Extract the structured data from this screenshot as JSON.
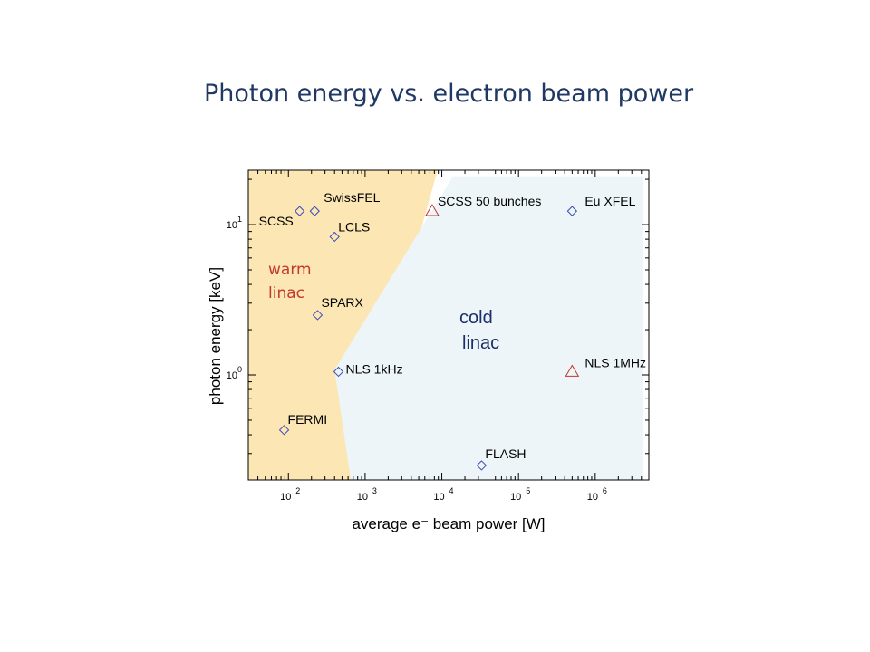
{
  "slide": {
    "title": "Photon energy vs. electron beam power"
  },
  "chart_data": {
    "type": "scatter",
    "title": "",
    "xlabel": "average e⁻ beam power [W]",
    "ylabel": "photon energy [keV]",
    "xscale": "log",
    "yscale": "log",
    "xlim": [
      30,
      5000000
    ],
    "ylim": [
      0.2,
      23
    ],
    "x_ticks": [
      {
        "value": 100,
        "label": "10",
        "exp": "2"
      },
      {
        "value": 1000,
        "label": "10",
        "exp": "3"
      },
      {
        "value": 10000,
        "label": "10",
        "exp": "4"
      },
      {
        "value": 100000,
        "label": "10",
        "exp": "5"
      },
      {
        "value": 1000000,
        "label": "10",
        "exp": "6"
      }
    ],
    "y_ticks": [
      {
        "value": 1,
        "label": "10",
        "exp": "0"
      },
      {
        "value": 10,
        "label": "10",
        "exp": "1"
      }
    ],
    "grid": false,
    "colors": {
      "warm_region": "#fbe6b4",
      "cold_region": "#eef5f8",
      "diamond": "#3b4bb8",
      "triangle": "#c0392b"
    },
    "regions": [
      {
        "name": "warm linac",
        "lines": [
          "warm",
          "linac"
        ],
        "vertices": [
          [
            30,
            23
          ],
          [
            8800,
            23
          ],
          [
            650,
            0.2
          ],
          [
            30,
            0.2
          ]
        ]
      },
      {
        "name": "cold linac",
        "lines": [
          "cold",
          "linac"
        ],
        "vertices": [
          [
            400,
            1.08
          ],
          [
            14000,
            21
          ],
          [
            4200000,
            21
          ],
          [
            4200000,
            0.2
          ],
          [
            650,
            0.2
          ]
        ]
      }
    ],
    "points": [
      {
        "label": "SwissFEL",
        "x": 220,
        "y": 12.3,
        "marker": "diamond"
      },
      {
        "label": "SCSS",
        "x": 140,
        "y": 12.3,
        "marker": "diamond"
      },
      {
        "label": "LCLS",
        "x": 400,
        "y": 8.3,
        "marker": "diamond"
      },
      {
        "label": "SCSS 50 bunches",
        "x": 7500,
        "y": 12.3,
        "marker": "triangle"
      },
      {
        "label": "Eu XFEL",
        "x": 500000,
        "y": 12.3,
        "marker": "diamond"
      },
      {
        "label": "SPARX",
        "x": 240,
        "y": 2.5,
        "marker": "diamond"
      },
      {
        "label": "NLS 1kHz",
        "x": 450,
        "y": 1.05,
        "marker": "diamond"
      },
      {
        "label": "NLS 1MHz",
        "x": 500000,
        "y": 1.05,
        "marker": "triangle"
      },
      {
        "label": "FERMI",
        "x": 88,
        "y": 0.43,
        "marker": "diamond"
      },
      {
        "label": "FLASH",
        "x": 33000,
        "y": 0.25,
        "marker": "diamond"
      }
    ]
  }
}
